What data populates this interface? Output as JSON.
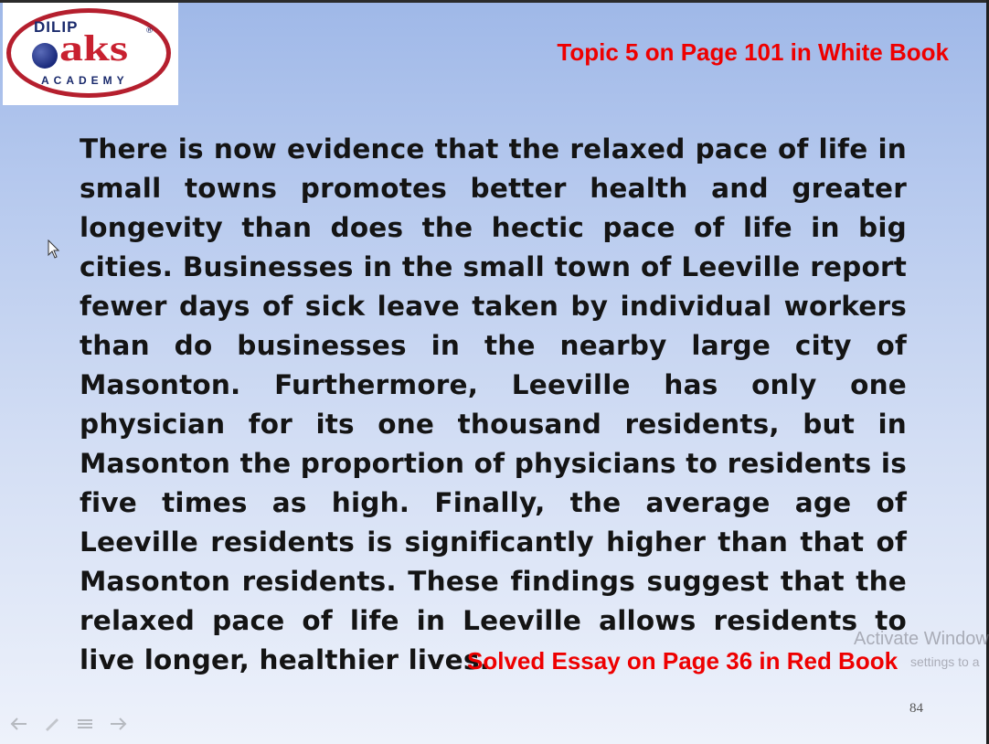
{
  "logo": {
    "top_text": "DILIP",
    "main_text": "aks",
    "bottom_text": "ACADEMY",
    "mark": "®",
    "colors": {
      "ring": "#b51f2e",
      "text_blue": "#1a2a6c",
      "text_red": "#c8202f"
    }
  },
  "header": {
    "reference": "Topic 5 on Page 101 in White Book",
    "color": "#ee0000"
  },
  "essay": {
    "text": "There is now evidence that the relaxed pace of life in small towns promotes better health and greater longevity than does the hectic pace of life in big cities. Businesses in the small town of Leeville report fewer days of sick leave taken by individual workers than do businesses in the nearby large city of Masonton. Furthermore, Leeville has only one physician for its one thousand residents, but in Masonton the proportion of physicians to residents is five times as high. Finally, the average age of Leeville residents is significantly higher than that of Masonton residents. These findings suggest that the relaxed pace of life in Leeville allows residents to live longer, healthier lives."
  },
  "footer": {
    "reference": "Solved Essay on Page 36 in Red Book",
    "slide_number": "84"
  },
  "watermark": {
    "title": "Activate Window",
    "subtitle": "settings to a"
  },
  "controls": {
    "icons": [
      "previous-arrow-icon",
      "pen-icon",
      "menu-icon",
      "next-arrow-icon"
    ]
  }
}
